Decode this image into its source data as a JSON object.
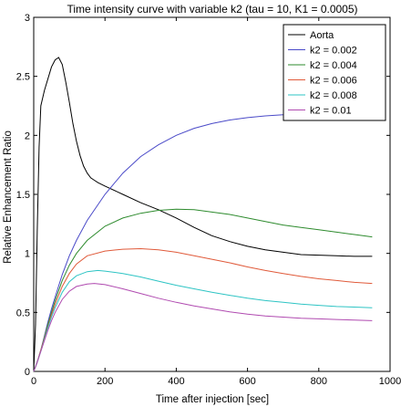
{
  "chart_data": {
    "type": "line",
    "title": "Time intensity curve with variable k2 (tau = 10, K1 = 0.0005)",
    "xlabel": "Time after injection [sec]",
    "ylabel": "Relative Enhancement Ratio",
    "xlim": [
      0,
      1000
    ],
    "ylim": [
      0,
      3
    ],
    "xticks": [
      0,
      200,
      400,
      600,
      800,
      1000
    ],
    "xtick_labels": [
      "0",
      "200",
      "400",
      "600",
      "800",
      "1000"
    ],
    "yticks": [
      0,
      0.5,
      1,
      1.5,
      2,
      2.5,
      3
    ],
    "ytick_labels": [
      "0",
      "0.5",
      "1",
      "1.5",
      "2",
      "2.5",
      "3"
    ],
    "grid": false,
    "legend_position": "top-right",
    "series": [
      {
        "name": "Aorta",
        "color": "#000000",
        "points": [
          [
            0,
            0
          ],
          [
            5,
            0.4
          ],
          [
            10,
            1.2
          ],
          [
            15,
            1.9
          ],
          [
            20,
            2.25
          ],
          [
            30,
            2.38
          ],
          [
            40,
            2.48
          ],
          [
            50,
            2.58
          ],
          [
            60,
            2.64
          ],
          [
            70,
            2.66
          ],
          [
            80,
            2.6
          ],
          [
            90,
            2.45
          ],
          [
            100,
            2.28
          ],
          [
            110,
            2.1
          ],
          [
            120,
            1.95
          ],
          [
            130,
            1.83
          ],
          [
            140,
            1.74
          ],
          [
            150,
            1.68
          ],
          [
            160,
            1.64
          ],
          [
            170,
            1.62
          ],
          [
            180,
            1.6
          ],
          [
            200,
            1.57
          ],
          [
            250,
            1.5
          ],
          [
            300,
            1.43
          ],
          [
            350,
            1.37
          ],
          [
            400,
            1.3
          ],
          [
            450,
            1.22
          ],
          [
            500,
            1.15
          ],
          [
            550,
            1.1
          ],
          [
            600,
            1.06
          ],
          [
            650,
            1.03
          ],
          [
            700,
            1.01
          ],
          [
            750,
            0.99
          ],
          [
            800,
            0.985
          ],
          [
            850,
            0.98
          ],
          [
            900,
            0.975
          ],
          [
            950,
            0.975
          ]
        ]
      },
      {
        "name": "k2 = 0.002",
        "color": "#4a4ac8",
        "points": [
          [
            0,
            0
          ],
          [
            10,
            0.08
          ],
          [
            20,
            0.18
          ],
          [
            30,
            0.3
          ],
          [
            40,
            0.42
          ],
          [
            50,
            0.53
          ],
          [
            60,
            0.63
          ],
          [
            80,
            0.82
          ],
          [
            100,
            0.98
          ],
          [
            120,
            1.11
          ],
          [
            150,
            1.28
          ],
          [
            200,
            1.5
          ],
          [
            250,
            1.68
          ],
          [
            300,
            1.82
          ],
          [
            350,
            1.92
          ],
          [
            400,
            2.0
          ],
          [
            450,
            2.06
          ],
          [
            500,
            2.1
          ],
          [
            550,
            2.13
          ],
          [
            600,
            2.15
          ],
          [
            650,
            2.165
          ],
          [
            700,
            2.175
          ],
          [
            750,
            2.18
          ],
          [
            800,
            2.18
          ],
          [
            850,
            2.18
          ],
          [
            900,
            2.175
          ],
          [
            950,
            2.17
          ]
        ]
      },
      {
        "name": "k2 = 0.004",
        "color": "#2e8b2e",
        "points": [
          [
            0,
            0
          ],
          [
            10,
            0.08
          ],
          [
            20,
            0.18
          ],
          [
            30,
            0.29
          ],
          [
            40,
            0.4
          ],
          [
            50,
            0.5
          ],
          [
            60,
            0.6
          ],
          [
            80,
            0.77
          ],
          [
            100,
            0.9
          ],
          [
            120,
            1.0
          ],
          [
            150,
            1.11
          ],
          [
            200,
            1.23
          ],
          [
            250,
            1.3
          ],
          [
            300,
            1.34
          ],
          [
            350,
            1.365
          ],
          [
            400,
            1.375
          ],
          [
            450,
            1.37
          ],
          [
            500,
            1.35
          ],
          [
            550,
            1.33
          ],
          [
            600,
            1.3
          ],
          [
            650,
            1.27
          ],
          [
            700,
            1.24
          ],
          [
            750,
            1.22
          ],
          [
            800,
            1.2
          ],
          [
            850,
            1.18
          ],
          [
            900,
            1.16
          ],
          [
            950,
            1.14
          ]
        ]
      },
      {
        "name": "k2 = 0.006",
        "color": "#e05a3a",
        "points": [
          [
            0,
            0
          ],
          [
            10,
            0.08
          ],
          [
            20,
            0.18
          ],
          [
            30,
            0.28
          ],
          [
            40,
            0.38
          ],
          [
            50,
            0.48
          ],
          [
            60,
            0.57
          ],
          [
            80,
            0.72
          ],
          [
            100,
            0.83
          ],
          [
            120,
            0.91
          ],
          [
            150,
            0.98
          ],
          [
            200,
            1.02
          ],
          [
            250,
            1.035
          ],
          [
            300,
            1.04
          ],
          [
            350,
            1.03
          ],
          [
            400,
            1.01
          ],
          [
            450,
            0.98
          ],
          [
            500,
            0.95
          ],
          [
            550,
            0.92
          ],
          [
            600,
            0.885
          ],
          [
            650,
            0.855
          ],
          [
            700,
            0.83
          ],
          [
            750,
            0.805
          ],
          [
            800,
            0.785
          ],
          [
            850,
            0.77
          ],
          [
            900,
            0.755
          ],
          [
            950,
            0.745
          ]
        ]
      },
      {
        "name": "k2 = 0.008",
        "color": "#2ec4c4",
        "points": [
          [
            0,
            0
          ],
          [
            10,
            0.08
          ],
          [
            20,
            0.17
          ],
          [
            30,
            0.27
          ],
          [
            40,
            0.37
          ],
          [
            50,
            0.46
          ],
          [
            60,
            0.54
          ],
          [
            80,
            0.67
          ],
          [
            100,
            0.76
          ],
          [
            120,
            0.81
          ],
          [
            150,
            0.845
          ],
          [
            180,
            0.855
          ],
          [
            200,
            0.85
          ],
          [
            250,
            0.83
          ],
          [
            300,
            0.8
          ],
          [
            350,
            0.765
          ],
          [
            400,
            0.73
          ],
          [
            450,
            0.7
          ],
          [
            500,
            0.67
          ],
          [
            550,
            0.645
          ],
          [
            600,
            0.62
          ],
          [
            650,
            0.6
          ],
          [
            700,
            0.585
          ],
          [
            750,
            0.57
          ],
          [
            800,
            0.56
          ],
          [
            850,
            0.55
          ],
          [
            900,
            0.545
          ],
          [
            950,
            0.54
          ]
        ]
      },
      {
        "name": "k2 = 0.01",
        "color": "#b04ab0",
        "points": [
          [
            0,
            0
          ],
          [
            10,
            0.08
          ],
          [
            20,
            0.17
          ],
          [
            30,
            0.26
          ],
          [
            40,
            0.35
          ],
          [
            50,
            0.43
          ],
          [
            60,
            0.5
          ],
          [
            80,
            0.61
          ],
          [
            100,
            0.68
          ],
          [
            120,
            0.72
          ],
          [
            150,
            0.74
          ],
          [
            170,
            0.745
          ],
          [
            200,
            0.735
          ],
          [
            250,
            0.7
          ],
          [
            300,
            0.66
          ],
          [
            350,
            0.62
          ],
          [
            400,
            0.585
          ],
          [
            450,
            0.555
          ],
          [
            500,
            0.53
          ],
          [
            550,
            0.505
          ],
          [
            600,
            0.485
          ],
          [
            650,
            0.47
          ],
          [
            700,
            0.46
          ],
          [
            750,
            0.45
          ],
          [
            800,
            0.445
          ],
          [
            850,
            0.44
          ],
          [
            900,
            0.435
          ],
          [
            950,
            0.43
          ]
        ]
      }
    ]
  }
}
